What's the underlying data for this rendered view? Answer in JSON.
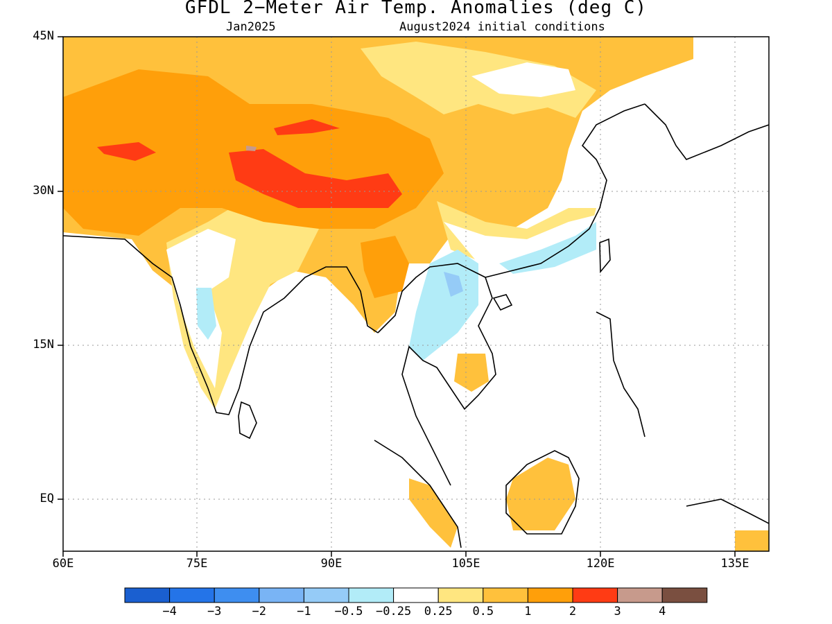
{
  "title": "GFDL 2−Meter Air Temp. Anomalies (deg C)",
  "subtitle_left": "Jan2025",
  "subtitle_right": "August2024 initial conditions",
  "lat_labels": [
    "45N",
    "30N",
    "15N",
    "EQ"
  ],
  "lon_labels": [
    "60E",
    "75E",
    "90E",
    "105E",
    "120E",
    "135E"
  ],
  "colorbar": {
    "colors": [
      "#1a5fd0",
      "#2474e8",
      "#3e8ef0",
      "#79b4f5",
      "#95cbf7",
      "#b2ecf8",
      "#ffffff",
      "#ffe680",
      "#ffc13c",
      "#ff9f0a",
      "#ff3b14",
      "#c79a8c",
      "#7a4f40"
    ],
    "labels": [
      "−4",
      "−3",
      "−2",
      "−1",
      "−0.5",
      "−0.25",
      "0.25",
      "0.5",
      "1",
      "2",
      "3",
      "4"
    ]
  },
  "colors": {
    "land_warm_1": "#ffe680",
    "land_warm_2": "#ffc13c",
    "land_warm_3": "#ff9f0a",
    "land_warm_4": "#ff3b14",
    "cool_1": "#b2ecf8",
    "cool_2": "#95cbf7",
    "cool_3": "#79b4f5",
    "grid": "#999999"
  }
}
